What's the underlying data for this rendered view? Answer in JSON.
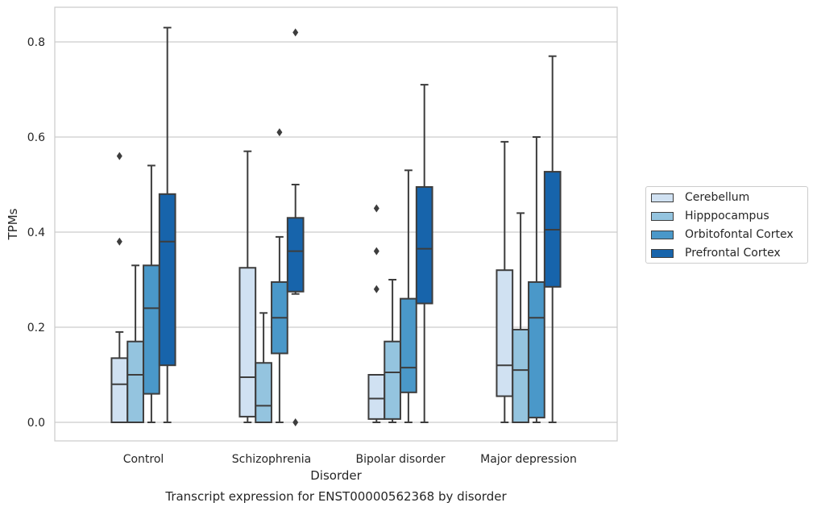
{
  "chart_data": {
    "type": "box",
    "title": "",
    "xlabel": "Disorder",
    "ylabel": "TPMs",
    "ylim": [
      -0.04,
      0.87
    ],
    "yticks": [
      0.0,
      0.2,
      0.4,
      0.6,
      0.8
    ],
    "ytick_labels": [
      "0.0",
      "0.2",
      "0.4",
      "0.6",
      "0.8"
    ],
    "grid": "horizontal",
    "legend_position": "right",
    "categories": [
      "Control",
      "Schizophrenia",
      "Bipolar disorder",
      "Major depression"
    ],
    "series": [
      {
        "name": "Cerebellum",
        "color": "#d0e1f2",
        "boxes": [
          {
            "whislo": 0.0,
            "q1": 0.0,
            "med": 0.08,
            "q3": 0.135,
            "whishi": 0.19,
            "fliers": [
              0.38,
              0.56
            ]
          },
          {
            "whislo": 0.0,
            "q1": 0.012,
            "med": 0.095,
            "q3": 0.325,
            "whishi": 0.57,
            "fliers": []
          },
          {
            "whislo": 0.0,
            "q1": 0.007,
            "med": 0.05,
            "q3": 0.1,
            "whishi": 0.1,
            "fliers": [
              0.28,
              0.36,
              0.45
            ]
          },
          {
            "whislo": 0.0,
            "q1": 0.055,
            "med": 0.12,
            "q3": 0.32,
            "whishi": 0.59,
            "fliers": []
          }
        ]
      },
      {
        "name": "Hipppocampus",
        "color": "#94c4df",
        "boxes": [
          {
            "whislo": 0.0,
            "q1": 0.0,
            "med": 0.1,
            "q3": 0.17,
            "whishi": 0.33,
            "fliers": []
          },
          {
            "whislo": 0.0,
            "q1": 0.0,
            "med": 0.035,
            "q3": 0.125,
            "whishi": 0.23,
            "fliers": []
          },
          {
            "whislo": 0.0,
            "q1": 0.007,
            "med": 0.105,
            "q3": 0.17,
            "whishi": 0.3,
            "fliers": []
          },
          {
            "whislo": 0.0,
            "q1": 0.0,
            "med": 0.11,
            "q3": 0.195,
            "whishi": 0.44,
            "fliers": []
          }
        ]
      },
      {
        "name": "Orbitofontal Cortex",
        "color": "#4a98c9",
        "boxes": [
          {
            "whislo": 0.0,
            "q1": 0.06,
            "med": 0.24,
            "q3": 0.33,
            "whishi": 0.54,
            "fliers": []
          },
          {
            "whislo": 0.0,
            "q1": 0.145,
            "med": 0.22,
            "q3": 0.295,
            "whishi": 0.39,
            "fliers": [
              0.61
            ]
          },
          {
            "whislo": 0.0,
            "q1": 0.063,
            "med": 0.115,
            "q3": 0.26,
            "whishi": 0.53,
            "fliers": []
          },
          {
            "whislo": 0.0,
            "q1": 0.01,
            "med": 0.22,
            "q3": 0.295,
            "whishi": 0.6,
            "fliers": []
          }
        ]
      },
      {
        "name": "Prefrontal Cortex",
        "color": "#1764ab",
        "boxes": [
          {
            "whislo": 0.0,
            "q1": 0.12,
            "med": 0.38,
            "q3": 0.48,
            "whishi": 0.83,
            "fliers": []
          },
          {
            "whislo": 0.27,
            "q1": 0.275,
            "med": 0.36,
            "q3": 0.43,
            "whishi": 0.5,
            "fliers": [
              0.0,
              0.82
            ]
          },
          {
            "whislo": 0.0,
            "q1": 0.25,
            "med": 0.365,
            "q3": 0.495,
            "whishi": 0.71,
            "fliers": []
          },
          {
            "whislo": 0.0,
            "q1": 0.285,
            "med": 0.405,
            "q3": 0.527,
            "whishi": 0.77,
            "fliers": []
          }
        ]
      }
    ]
  },
  "caption": "Transcript expression for ENST00000562368 by disorder"
}
